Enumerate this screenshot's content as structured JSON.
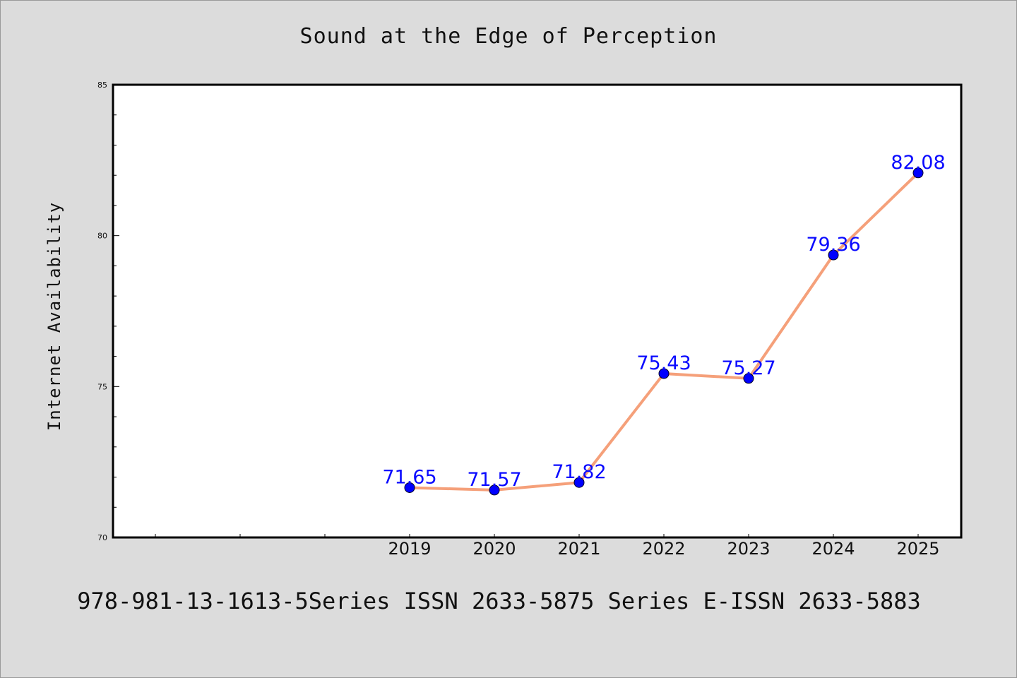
{
  "title": "Sound at the Edge of Perception",
  "footer": "978-981-13-1613-5Series ISSN 2633-5875 Series E-ISSN 2633-5883",
  "colors": {
    "background": "#dcdcdc",
    "plot_area": "#ffffff",
    "line": "#f5a07a",
    "marker": "#0000ff",
    "data_label": "#0a0aff"
  },
  "chart_data": {
    "type": "line",
    "title": "Sound at the Edge of Perception",
    "xlabel": "",
    "ylabel": "Internet Availability",
    "x": [
      "2019",
      "2020",
      "2021",
      "2022",
      "2023",
      "2024",
      "2025"
    ],
    "values": [
      71.65,
      71.57,
      71.82,
      75.43,
      75.27,
      79.36,
      82.08
    ],
    "value_labels": [
      "71.65",
      "71.57",
      "71.82",
      "75.43",
      "75.27",
      "79.36",
      "82.08"
    ],
    "ylim": [
      70,
      85
    ],
    "y_ticks": [
      "70",
      "75",
      "80",
      "85"
    ],
    "y_minor_step": 1,
    "x_slots": 10,
    "x_first_slot": 3,
    "grid": false,
    "legend": "none"
  }
}
